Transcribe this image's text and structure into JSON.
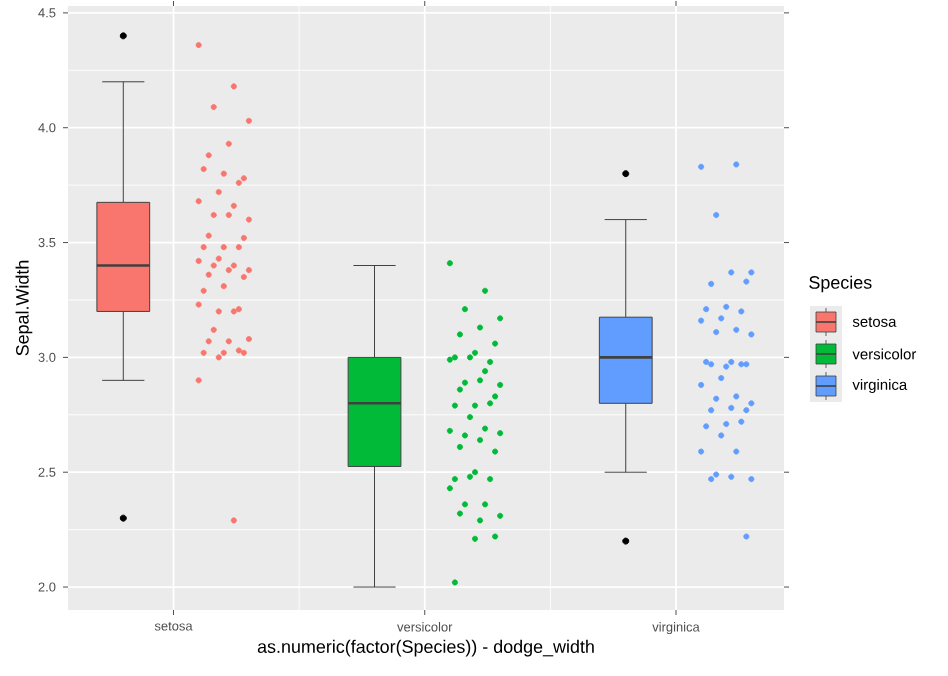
{
  "chart_data": {
    "type": "box",
    "xlabel": "as.numeric(factor(Species)) - dodge_width",
    "ylabel": "Sepal.Width",
    "legend_title": "Species",
    "categories": [
      "setosa",
      "versicolor",
      "virginica"
    ],
    "ylim": [
      1.9,
      4.53
    ],
    "yticks": [
      {
        "value": 2,
        "label": "2.0"
      },
      {
        "value": 2.5,
        "label": "2.5"
      },
      {
        "value": 3,
        "label": "3.0"
      },
      {
        "value": 3.5,
        "label": "3.5"
      },
      {
        "value": 4,
        "label": "4.0"
      },
      {
        "value": 4.5,
        "label": "4.5"
      }
    ],
    "grid": true,
    "legend": "right",
    "marker": "circle",
    "series": [
      {
        "name": "setosa",
        "color": "#f8766d",
        "boxes": [
          {
            "low": 2.9,
            "q1": 3.2,
            "median": 3.4,
            "q3": 3.675,
            "high": 4.2,
            "outliers": [
              4.4,
              2.3
            ]
          },
          null,
          null
        ]
      },
      {
        "name": "versicolor",
        "color": "#00ba38",
        "boxes": [
          null,
          {
            "low": 2.0,
            "q1": 2.525,
            "median": 2.8,
            "q3": 3.0,
            "high": 3.4
          },
          null
        ]
      },
      {
        "name": "virginica",
        "color": "#619cff",
        "boxes": [
          null,
          null,
          {
            "low": 2.5,
            "q1": 2.8,
            "median": 3.0,
            "q3": 3.175,
            "high": 3.6,
            "outliers": [
              3.8,
              2.2
            ]
          }
        ]
      },
      {
        "type": "scatter",
        "color": "#f8766d",
        "x": [
          "setosa",
          "setosa",
          "setosa",
          "setosa",
          "setosa",
          "setosa",
          "setosa",
          "setosa",
          "setosa",
          "setosa",
          "setosa",
          "setosa",
          "setosa",
          "setosa",
          "setosa",
          "setosa",
          "setosa",
          "setosa",
          "setosa",
          "setosa",
          "setosa",
          "setosa",
          "setosa",
          "setosa",
          "setosa",
          "setosa",
          "setosa",
          "setosa",
          "setosa",
          "setosa",
          "setosa",
          "setosa",
          "setosa",
          "setosa",
          "setosa",
          "setosa",
          "setosa",
          "setosa",
          "setosa",
          "setosa",
          "setosa",
          "setosa",
          "setosa",
          "setosa",
          "setosa",
          "setosa"
        ],
        "values": [
          4.36,
          4.18,
          4.09,
          4.03,
          3.93,
          3.88,
          3.78,
          3.8,
          3.82,
          3.76,
          3.72,
          3.68,
          3.66,
          3.62,
          3.6,
          3.62,
          3.53,
          3.52,
          3.48,
          3.48,
          3.48,
          3.43,
          3.42,
          3.4,
          3.4,
          3.38,
          3.38,
          3.36,
          3.35,
          3.31,
          3.29,
          3.21,
          3.2,
          3.23,
          3.2,
          3.12,
          3.08,
          3.07,
          3.07,
          3.02,
          3.02,
          3.02,
          3.03,
          3.0,
          2.9,
          2.29
        ]
      },
      {
        "type": "scatter",
        "color": "#00ba38",
        "x": [
          "versicolor",
          "versicolor",
          "versicolor",
          "versicolor",
          "versicolor",
          "versicolor",
          "versicolor",
          "versicolor",
          "versicolor",
          "versicolor",
          "versicolor",
          "versicolor",
          "versicolor",
          "versicolor",
          "versicolor",
          "versicolor",
          "versicolor",
          "versicolor",
          "versicolor",
          "versicolor",
          "versicolor",
          "versicolor",
          "versicolor",
          "versicolor",
          "versicolor",
          "versicolor",
          "versicolor",
          "versicolor",
          "versicolor",
          "versicolor",
          "versicolor",
          "versicolor",
          "versicolor",
          "versicolor",
          "versicolor",
          "versicolor",
          "versicolor",
          "versicolor",
          "versicolor",
          "versicolor",
          "versicolor",
          "versicolor"
        ],
        "values": [
          3.41,
          3.29,
          3.21,
          3.17,
          3.13,
          3.1,
          3.06,
          3.02,
          3.0,
          2.98,
          3.0,
          2.99,
          2.94,
          2.89,
          2.88,
          2.9,
          2.86,
          2.83,
          2.79,
          2.79,
          2.8,
          2.74,
          2.68,
          2.69,
          2.66,
          2.67,
          2.64,
          2.61,
          2.59,
          2.5,
          2.47,
          2.47,
          2.48,
          2.43,
          2.36,
          2.36,
          2.31,
          2.29,
          2.32,
          2.22,
          2.21,
          2.02
        ]
      },
      {
        "type": "scatter",
        "color": "#619cff",
        "x": [
          "virginica",
          "virginica",
          "virginica",
          "virginica",
          "virginica",
          "virginica",
          "virginica",
          "virginica",
          "virginica",
          "virginica",
          "virginica",
          "virginica",
          "virginica",
          "virginica",
          "virginica",
          "virginica",
          "virginica",
          "virginica",
          "virginica",
          "virginica",
          "virginica",
          "virginica",
          "virginica",
          "virginica",
          "virginica",
          "virginica",
          "virginica",
          "virginica",
          "virginica",
          "virginica",
          "virginica",
          "virginica",
          "virginica",
          "virginica",
          "virginica",
          "virginica",
          "virginica",
          "virginica",
          "virginica",
          "virginica"
        ],
        "values": [
          3.83,
          3.84,
          3.62,
          3.37,
          3.37,
          3.32,
          3.33,
          3.22,
          3.21,
          3.2,
          3.17,
          3.16,
          3.12,
          3.11,
          3.1,
          2.98,
          2.97,
          2.97,
          2.96,
          2.98,
          2.97,
          2.91,
          2.88,
          2.83,
          2.82,
          2.8,
          2.78,
          2.77,
          2.77,
          2.71,
          2.7,
          2.72,
          2.66,
          2.59,
          2.59,
          2.49,
          2.47,
          2.48,
          2.47,
          2.22
        ]
      }
    ]
  }
}
